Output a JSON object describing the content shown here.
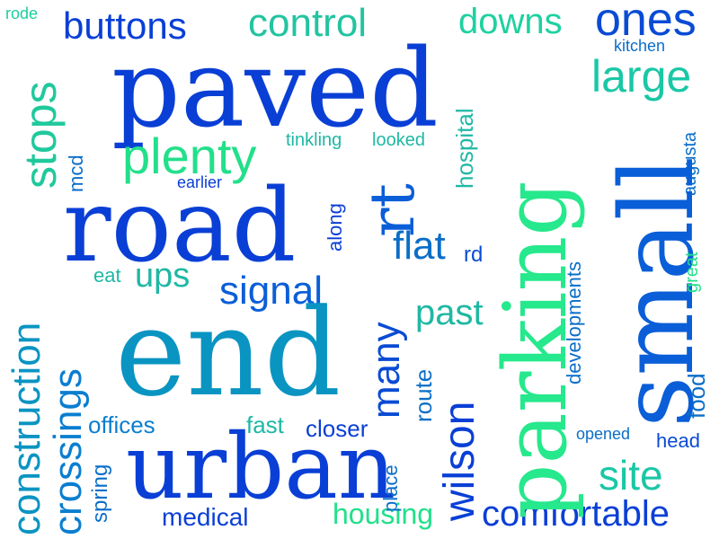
{
  "words": [
    {
      "text": "rode",
      "color": "#1ccf9e"
    },
    {
      "text": "buttons",
      "color": "#0a3fd6"
    },
    {
      "text": "control",
      "color": "#22c4a0"
    },
    {
      "text": "downs",
      "color": "#1fd1a0"
    },
    {
      "text": "ones",
      "color": "#0a4bd4"
    },
    {
      "text": "kitchen",
      "color": "#0a6ec8"
    },
    {
      "text": "large",
      "color": "#1ac7a6"
    },
    {
      "text": "paved",
      "color": "#0a3fd6"
    },
    {
      "text": "stops",
      "color": "#1fc99c"
    },
    {
      "text": "mcd",
      "color": "#0a6ec8"
    },
    {
      "text": "plenty",
      "color": "#22e08a"
    },
    {
      "text": "tinkling",
      "color": "#1fb8a4"
    },
    {
      "text": "looked",
      "color": "#1fb8a4"
    },
    {
      "text": "hospital",
      "color": "#1fb8a4"
    },
    {
      "text": "augusta",
      "color": "#0a6ec8"
    },
    {
      "text": "earlier",
      "color": "#0a3fd6"
    },
    {
      "text": "road",
      "color": "#0a3fd6"
    },
    {
      "text": "rt",
      "color": "#0a5ed8"
    },
    {
      "text": "along",
      "color": "#0a3fd6"
    },
    {
      "text": "parking",
      "color": "#26e88c"
    },
    {
      "text": "small",
      "color": "#0a5ed8"
    },
    {
      "text": "developments",
      "color": "#0a6ec8"
    },
    {
      "text": "great",
      "color": "#22e08a"
    },
    {
      "text": "construction",
      "color": "#0a94c2"
    },
    {
      "text": "crossings",
      "color": "#0a7ed0"
    },
    {
      "text": "flat",
      "color": "#0a6ec8"
    },
    {
      "text": "rd",
      "color": "#0a4bd4"
    },
    {
      "text": "eat",
      "color": "#1fb8a4"
    },
    {
      "text": "ups",
      "color": "#1fb8a4"
    },
    {
      "text": "signal",
      "color": "#0a5ed8"
    },
    {
      "text": "many",
      "color": "#0a4bd4"
    },
    {
      "text": "past",
      "color": "#1fb8a4"
    },
    {
      "text": "end",
      "color": "#0a94c2"
    },
    {
      "text": "route",
      "color": "#0a6ec8"
    },
    {
      "text": "wilson",
      "color": "#0a3fd6"
    },
    {
      "text": "food",
      "color": "#0a6ec8"
    },
    {
      "text": "offices",
      "color": "#0a7ed0"
    },
    {
      "text": "fast",
      "color": "#1fb8a4"
    },
    {
      "text": "closer",
      "color": "#0a3fd6"
    },
    {
      "text": "opened",
      "color": "#0a6ec8"
    },
    {
      "text": "head",
      "color": "#0a4bd4"
    },
    {
      "text": "urban",
      "color": "#0a3fd6"
    },
    {
      "text": "site",
      "color": "#1ac7a6"
    },
    {
      "text": "place",
      "color": "#0a6ec8"
    },
    {
      "text": "spring",
      "color": "#0a6ec8"
    },
    {
      "text": "medical",
      "color": "#0a3fd6"
    },
    {
      "text": "housing",
      "color": "#22e08a"
    },
    {
      "text": "comfortable",
      "color": "#0a3fd6"
    }
  ]
}
